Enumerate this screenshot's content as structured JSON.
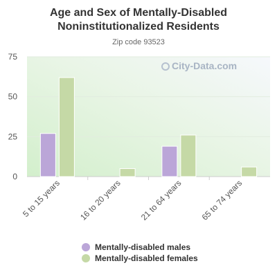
{
  "title": "Age and Sex of Mentally-Disabled Noninstitutionalized Residents",
  "subtitle": "Zip code 93523",
  "watermark": "City-Data.com",
  "chart_data": {
    "type": "bar",
    "categories": [
      "5 to 15 years",
      "16 to 20 years",
      "21 to 64 years",
      "65 to 74 years"
    ],
    "series": [
      {
        "name": "Mentally-disabled males",
        "values": [
          27,
          0,
          19,
          0
        ],
        "color": "#bba6d8"
      },
      {
        "name": "Mentally-disabled females",
        "values": [
          62,
          5,
          26,
          6
        ],
        "color": "#c5d9a6"
      }
    ],
    "yticks": [
      0,
      25,
      50,
      75
    ],
    "ylim": [
      0,
      75
    ],
    "grid": true,
    "legend": "bottom"
  }
}
